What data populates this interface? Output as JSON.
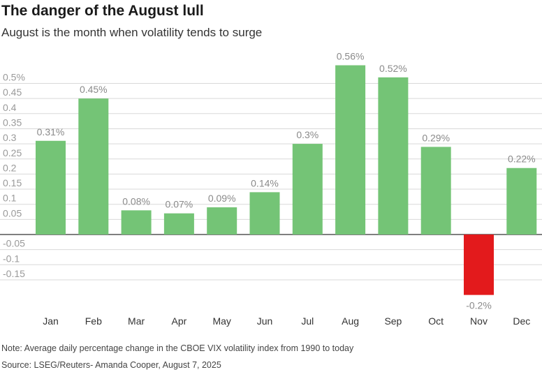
{
  "chart_data": {
    "type": "bar",
    "title": "The danger of the August lull",
    "subtitle": "August is the month when volatility tends to surge",
    "xlabel": "",
    "ylabel": "",
    "categories": [
      "Jan",
      "Feb",
      "Mar",
      "Apr",
      "May",
      "Jun",
      "Jul",
      "Aug",
      "Sep",
      "Oct",
      "Nov",
      "Dec"
    ],
    "values": [
      0.31,
      0.45,
      0.08,
      0.07,
      0.09,
      0.14,
      0.3,
      0.56,
      0.52,
      0.29,
      -0.2,
      0.22
    ],
    "data_labels": [
      "0.31%",
      "0.45%",
      "0.08%",
      "0.07%",
      "0.09%",
      "0.14%",
      "0.3%",
      "0.56%",
      "0.52%",
      "0.29%",
      "-0.2%",
      "0.22%"
    ],
    "y_ticks": [
      0.5,
      0.45,
      0.4,
      0.35,
      0.3,
      0.25,
      0.2,
      0.15,
      0.1,
      0.05,
      -0.05,
      -0.1,
      -0.15
    ],
    "y_tick_labels": [
      "0.5%",
      "0.45",
      "0.4",
      "0.35",
      "0.3",
      "0.25",
      "0.2",
      "0.15",
      "0.1",
      "0.05",
      "-0.05",
      "-0.1",
      "-0.15"
    ],
    "ylim": [
      -0.2,
      0.56
    ],
    "grid": true,
    "colors": {
      "positive": "#74c476",
      "negative": "#e31a1c",
      "grid": "#d9d9d9",
      "zero_line": "#555555"
    },
    "note": "Note: Average daily percentage change in the CBOE VIX volatility index from 1990 to today",
    "source": "Source: LSEG/Reuters- Amanda Cooper, August 7, 2025"
  }
}
